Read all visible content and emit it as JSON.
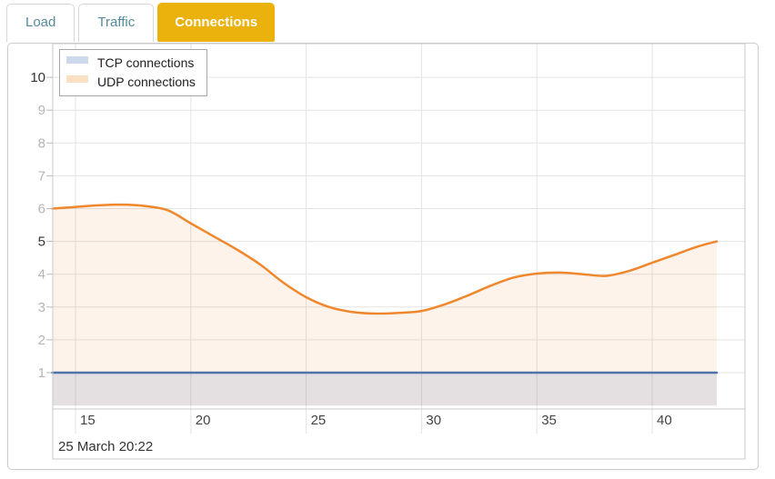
{
  "tabs": [
    {
      "label": "Load",
      "active": false
    },
    {
      "label": "Traffic",
      "active": false
    },
    {
      "label": "Connections",
      "active": true
    }
  ],
  "tab_colors": {
    "active_bg": "#EBB10D",
    "active_text": "#FFFFFF",
    "inactive_text": "#54899B"
  },
  "legend": {
    "items": [
      {
        "label": "TCP connections",
        "line_color": "#5B80B6",
        "fill_color": "#CDD9EC"
      },
      {
        "label": "UDP connections",
        "line_color": "#F0872D",
        "fill_color": "#FBE0C4"
      }
    ]
  },
  "footer": {
    "date_label": "25 March 20:22"
  },
  "chart_data": {
    "type": "area",
    "title": "",
    "x": [
      14,
      15,
      16,
      17,
      18,
      19,
      20,
      21,
      22,
      23,
      24,
      25,
      26,
      27,
      28,
      29,
      30,
      31,
      32,
      33,
      34,
      35,
      36,
      37,
      38,
      39,
      40,
      41,
      42,
      42.8
    ],
    "series": [
      {
        "name": "TCP connections",
        "color": "#4D74A8",
        "fill": "rgba(77,116,168,0.14)",
        "values": [
          1,
          1,
          1,
          1,
          1,
          1,
          1,
          1,
          1,
          1,
          1,
          1,
          1,
          1,
          1,
          1,
          1,
          1,
          1,
          1,
          1,
          1,
          1,
          1,
          1,
          1,
          1,
          1,
          1,
          1
        ]
      },
      {
        "name": "UDP connections",
        "color": "#F0872D",
        "fill": "rgba(240,135,45,0.10)",
        "values": [
          6.0,
          6.05,
          6.1,
          6.12,
          6.08,
          5.95,
          5.55,
          5.15,
          4.75,
          4.3,
          3.75,
          3.3,
          3.0,
          2.85,
          2.8,
          2.82,
          2.88,
          3.08,
          3.35,
          3.65,
          3.9,
          4.02,
          4.05,
          4.0,
          3.95,
          4.1,
          4.35,
          4.6,
          4.85,
          5.0
        ]
      }
    ],
    "xticks": [
      15,
      20,
      25,
      30,
      35,
      40
    ],
    "yticks": [
      1,
      2,
      3,
      4,
      5,
      6,
      7,
      8,
      9,
      10
    ],
    "yticks_emphasized": [
      5,
      10
    ],
    "xlim": [
      14,
      44
    ],
    "ylim": [
      0,
      11.1
    ],
    "grid": true,
    "legend_position": "top-left",
    "grid_color": "#E3E3E3",
    "border_color": "#C9C9C9",
    "tick_label_color": "#B5B5B5",
    "tick_label_emphasized_color": "#333333",
    "xtick_label_color": "#444444"
  }
}
